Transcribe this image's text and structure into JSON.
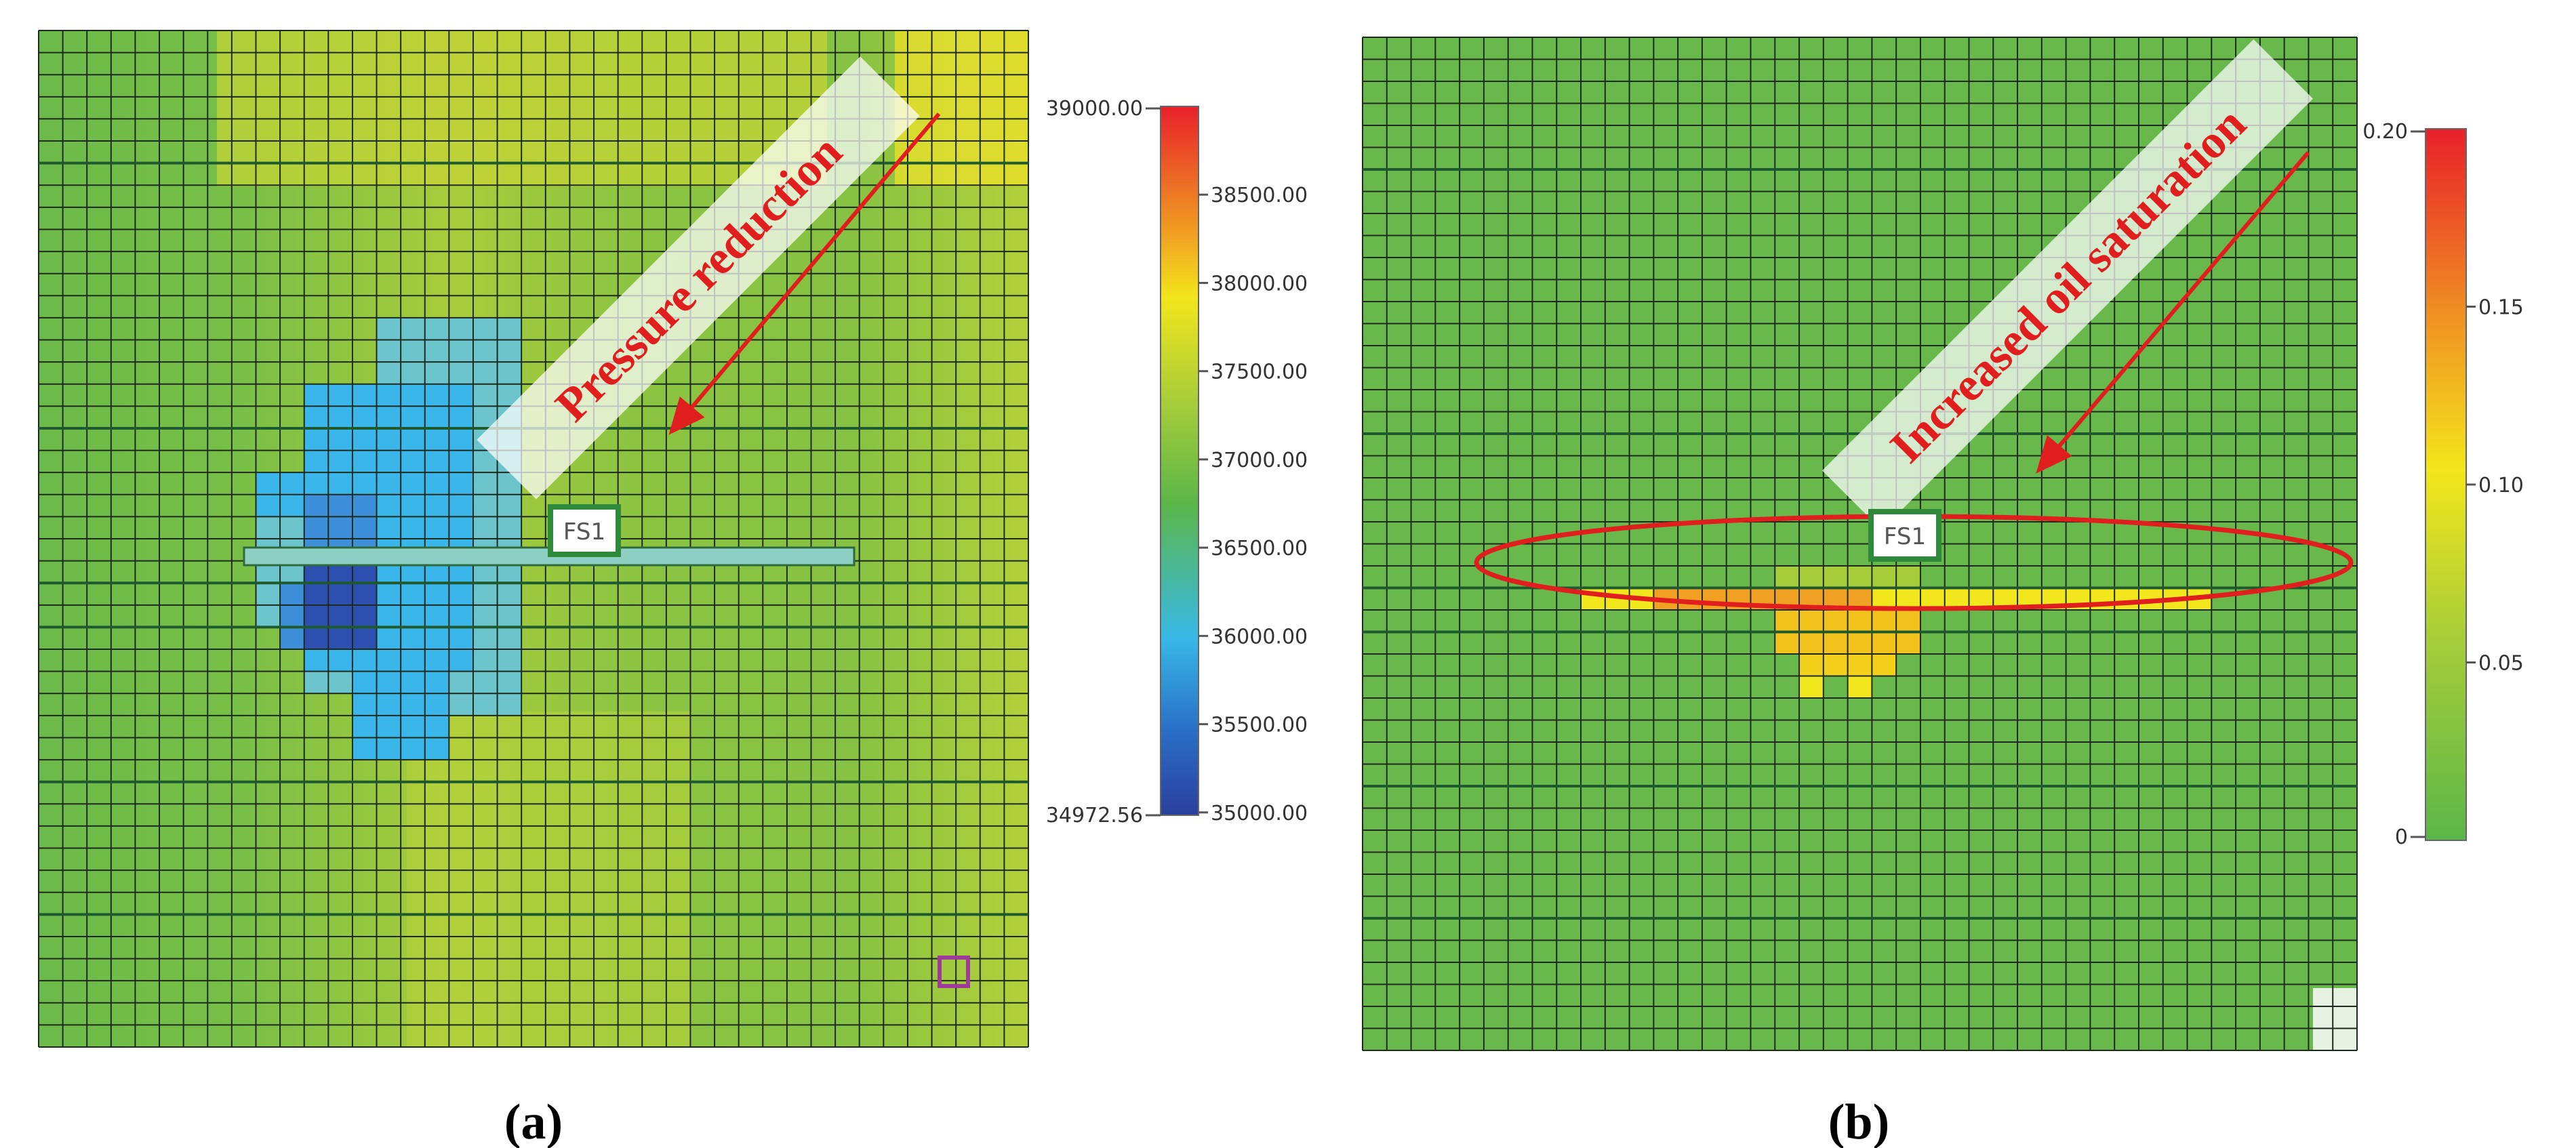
{
  "panels": [
    {
      "id": "a",
      "caption": "(a)",
      "well_label": "FS1",
      "annotation": "Pressure reduction",
      "colorbar": {
        "max_label": "39000.00",
        "min_label": "34972.56",
        "ticks": [
          "38500.00",
          "38000.00",
          "37500.00",
          "37000.00",
          "36500.00",
          "36000.00",
          "35500.00",
          "35000.00"
        ],
        "colors_top_to_bottom": [
          "#e8202a",
          "#f0a022",
          "#f2e61c",
          "#a6cc3a",
          "#5cb649",
          "#38b8e6",
          "#2a6fc6",
          "#2a3f9c"
        ]
      }
    },
    {
      "id": "b",
      "caption": "(b)",
      "well_label": "FS1",
      "annotation": "Increased oil saturation",
      "colorbar": {
        "max_label": "0.20",
        "min_label": "0",
        "ticks": [
          "0.15",
          "0.10",
          "0.05"
        ],
        "colors_top_to_bottom": [
          "#e8202a",
          "#f0a022",
          "#f2e61c",
          "#a6cc3a",
          "#5cb649"
        ]
      }
    }
  ],
  "colors": {
    "background_green": "#68b84c",
    "grid_line": "#1d2a1d",
    "arrow_red": "#e01e1e",
    "well_border": "#2e8a3a",
    "marker_purple": "#a03a9a"
  }
}
